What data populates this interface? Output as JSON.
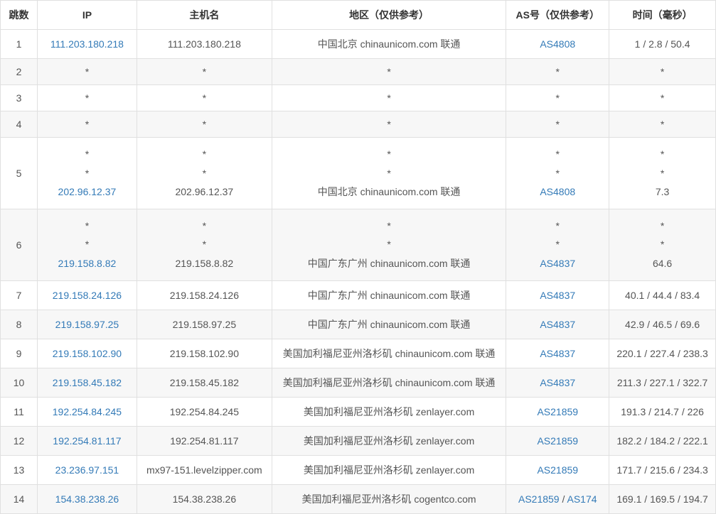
{
  "table": {
    "columns": [
      "跳数",
      "IP",
      "主机名",
      "地区（仅供参考）",
      "AS号（仅供参考）",
      "时间（毫秒）"
    ],
    "link_color": "#337ab7",
    "border_color": "#e0e0e0",
    "alt_row_bg": "#f7f7f7",
    "rows": [
      {
        "hop": "1",
        "lines": [
          {
            "ip": "111.203.180.218",
            "ip_link": true,
            "host": "111.203.180.218",
            "loc": "中国北京 chinaunicom.com 联通",
            "asn": [
              {
                "text": "AS4808",
                "link": true
              }
            ],
            "time": "1 / 2.8 / 50.4"
          }
        ]
      },
      {
        "hop": "2",
        "lines": [
          {
            "ip": "*",
            "ip_link": false,
            "host": "*",
            "loc": "*",
            "asn": [
              {
                "text": "*",
                "link": false
              }
            ],
            "time": "*"
          }
        ]
      },
      {
        "hop": "3",
        "lines": [
          {
            "ip": "*",
            "ip_link": false,
            "host": "*",
            "loc": "*",
            "asn": [
              {
                "text": "*",
                "link": false
              }
            ],
            "time": "*"
          }
        ]
      },
      {
        "hop": "4",
        "lines": [
          {
            "ip": "*",
            "ip_link": false,
            "host": "*",
            "loc": "*",
            "asn": [
              {
                "text": "*",
                "link": false
              }
            ],
            "time": "*"
          }
        ]
      },
      {
        "hop": "5",
        "lines": [
          {
            "ip": "*",
            "ip_link": false,
            "host": "*",
            "loc": "*",
            "asn": [
              {
                "text": "*",
                "link": false
              }
            ],
            "time": "*"
          },
          {
            "ip": "*",
            "ip_link": false,
            "host": "*",
            "loc": "*",
            "asn": [
              {
                "text": "*",
                "link": false
              }
            ],
            "time": "*"
          },
          {
            "ip": "202.96.12.37",
            "ip_link": true,
            "host": "202.96.12.37",
            "loc": "中国北京 chinaunicom.com 联通",
            "asn": [
              {
                "text": "AS4808",
                "link": true
              }
            ],
            "time": "7.3"
          }
        ]
      },
      {
        "hop": "6",
        "lines": [
          {
            "ip": "*",
            "ip_link": false,
            "host": "*",
            "loc": "*",
            "asn": [
              {
                "text": "*",
                "link": false
              }
            ],
            "time": "*"
          },
          {
            "ip": "*",
            "ip_link": false,
            "host": "*",
            "loc": "*",
            "asn": [
              {
                "text": "*",
                "link": false
              }
            ],
            "time": "*"
          },
          {
            "ip": "219.158.8.82",
            "ip_link": true,
            "host": "219.158.8.82",
            "loc": "中国广东广州 chinaunicom.com 联通",
            "asn": [
              {
                "text": "AS4837",
                "link": true
              }
            ],
            "time": "64.6"
          }
        ]
      },
      {
        "hop": "7",
        "lines": [
          {
            "ip": "219.158.24.126",
            "ip_link": true,
            "host": "219.158.24.126",
            "loc": "中国广东广州 chinaunicom.com 联通",
            "asn": [
              {
                "text": "AS4837",
                "link": true
              }
            ],
            "time": "40.1 / 44.4 / 83.4"
          }
        ]
      },
      {
        "hop": "8",
        "lines": [
          {
            "ip": "219.158.97.25",
            "ip_link": true,
            "host": "219.158.97.25",
            "loc": "中国广东广州 chinaunicom.com 联通",
            "asn": [
              {
                "text": "AS4837",
                "link": true
              }
            ],
            "time": "42.9 / 46.5 / 69.6"
          }
        ]
      },
      {
        "hop": "9",
        "lines": [
          {
            "ip": "219.158.102.90",
            "ip_link": true,
            "host": "219.158.102.90",
            "loc": "美国加利福尼亚州洛杉矶 chinaunicom.com 联通",
            "asn": [
              {
                "text": "AS4837",
                "link": true
              }
            ],
            "time": "220.1 / 227.4 / 238.3"
          }
        ]
      },
      {
        "hop": "10",
        "lines": [
          {
            "ip": "219.158.45.182",
            "ip_link": true,
            "host": "219.158.45.182",
            "loc": "美国加利福尼亚州洛杉矶 chinaunicom.com 联通",
            "asn": [
              {
                "text": "AS4837",
                "link": true
              }
            ],
            "time": "211.3 / 227.1 / 322.7"
          }
        ]
      },
      {
        "hop": "11",
        "lines": [
          {
            "ip": "192.254.84.245",
            "ip_link": true,
            "host": "192.254.84.245",
            "loc": "美国加利福尼亚州洛杉矶 zenlayer.com",
            "asn": [
              {
                "text": "AS21859",
                "link": true
              }
            ],
            "time": "191.3 / 214.7 / 226"
          }
        ]
      },
      {
        "hop": "12",
        "lines": [
          {
            "ip": "192.254.81.117",
            "ip_link": true,
            "host": "192.254.81.117",
            "loc": "美国加利福尼亚州洛杉矶 zenlayer.com",
            "asn": [
              {
                "text": "AS21859",
                "link": true
              }
            ],
            "time": "182.2 / 184.2 / 222.1"
          }
        ]
      },
      {
        "hop": "13",
        "lines": [
          {
            "ip": "23.236.97.151",
            "ip_link": true,
            "host": "mx97-151.levelzipper.com",
            "loc": "美国加利福尼亚州洛杉矶 zenlayer.com",
            "asn": [
              {
                "text": "AS21859",
                "link": true
              }
            ],
            "time": "171.7 / 215.6 / 234.3"
          }
        ]
      },
      {
        "hop": "14",
        "lines": [
          {
            "ip": "154.38.238.26",
            "ip_link": true,
            "host": "154.38.238.26",
            "loc": "美国加利福尼亚州洛杉矶 cogentco.com",
            "asn": [
              {
                "text": "AS21859",
                "link": true
              },
              {
                "text": " / ",
                "link": false
              },
              {
                "text": "AS174",
                "link": true
              }
            ],
            "time": "169.1 / 169.5 / 194.7"
          }
        ]
      }
    ]
  }
}
